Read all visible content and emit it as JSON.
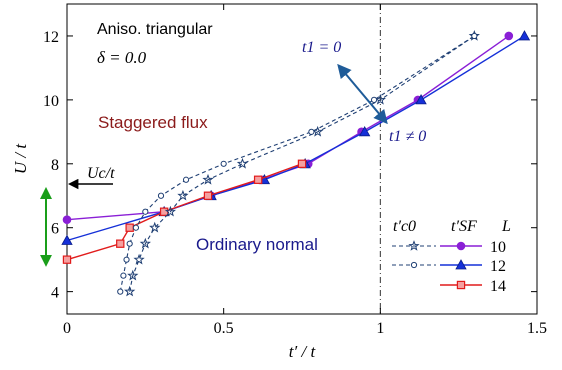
{
  "chart_data": {
    "type": "line",
    "title": "",
    "xlabel": "t′ / t",
    "ylabel": "U / t",
    "xlim": [
      0,
      1.5
    ],
    "ylim": [
      3.3,
      13.0
    ],
    "xticks": [
      0,
      0.5,
      1,
      1.5
    ],
    "xtick_labels": [
      "0",
      "0.5",
      "1",
      "1.5"
    ],
    "yticks": [
      4,
      6,
      8,
      10,
      12
    ],
    "ytick_labels": [
      "4",
      "6",
      "8",
      "10",
      "12"
    ],
    "grid": false,
    "legend_position": "lower-right",
    "legend_headers": {
      "tc0": "t′c0",
      "tsf": "t′SF",
      "L": "L"
    },
    "annotations": {
      "system": "Aniso. triangular",
      "delta": "δ = 0.0",
      "staggered_flux": "Staggered flux",
      "ordinary_normal": "Ordinary normal",
      "t1_zero": "t1 = 0",
      "t1_nonzero": "t1 ≠ 0",
      "uc": "Uc/t"
    },
    "colors": {
      "L10": "#8a1fd6",
      "L12": "#1530d8",
      "L14": "#e11c1c",
      "dashed": "#1f3f73",
      "staggered_text": "#8b1a1a",
      "normal_text": "#1a1a8c",
      "arrow_t1": "#1f5c99",
      "uc_arrow": "#1a9e1a"
    },
    "series": [
      {
        "id": "tsf10",
        "name": "10",
        "style": "solid",
        "marker": "circle",
        "color": "#8a1fd6",
        "x": [
          0,
          0.31,
          0.46,
          0.62,
          0.77,
          0.94,
          1.12,
          1.41
        ],
        "y": [
          6.25,
          6.5,
          7.0,
          7.5,
          8.0,
          9.0,
          10.0,
          12.0
        ]
      },
      {
        "id": "tsf12",
        "name": "12",
        "style": "solid",
        "marker": "triangle",
        "color": "#1530d8",
        "x": [
          0,
          0.31,
          0.46,
          0.63,
          0.76,
          0.95,
          1.13,
          1.46
        ],
        "y": [
          5.6,
          6.5,
          7.0,
          7.5,
          8.0,
          9.0,
          10.0,
          12.0
        ]
      },
      {
        "id": "tsf14",
        "name": "14",
        "style": "solid",
        "marker": "square",
        "color": "#e11c1c",
        "x": [
          0,
          0.17,
          0.2,
          0.31,
          0.45,
          0.61,
          0.75
        ],
        "y": [
          5.0,
          5.5,
          6.0,
          6.5,
          7.0,
          7.5,
          8.0
        ]
      },
      {
        "id": "tc0_10",
        "name": "",
        "style": "dashed",
        "marker": "star",
        "color": "#1f3f73",
        "x": [
          0.2,
          0.21,
          0.23,
          0.25,
          0.28,
          0.33,
          0.37,
          0.45,
          0.56,
          0.8,
          1.0,
          1.3
        ],
        "y": [
          4.0,
          4.5,
          5.0,
          5.5,
          6.0,
          6.5,
          7.0,
          7.5,
          8.0,
          9.0,
          10.0,
          12.0
        ]
      },
      {
        "id": "tc0_12",
        "name": "",
        "style": "dashed",
        "marker": "circle-open",
        "color": "#1f3f73",
        "x": [
          0.17,
          0.18,
          0.19,
          0.2,
          0.22,
          0.25,
          0.3,
          0.38,
          0.5,
          0.78,
          0.98,
          1.3
        ],
        "y": [
          4.0,
          4.5,
          5.0,
          5.5,
          6.0,
          6.5,
          7.0,
          7.5,
          8.0,
          9.0,
          10.0,
          12.0
        ]
      }
    ],
    "vline_x": 1.0,
    "uc_range": [
      4.85,
      7.2
    ]
  }
}
